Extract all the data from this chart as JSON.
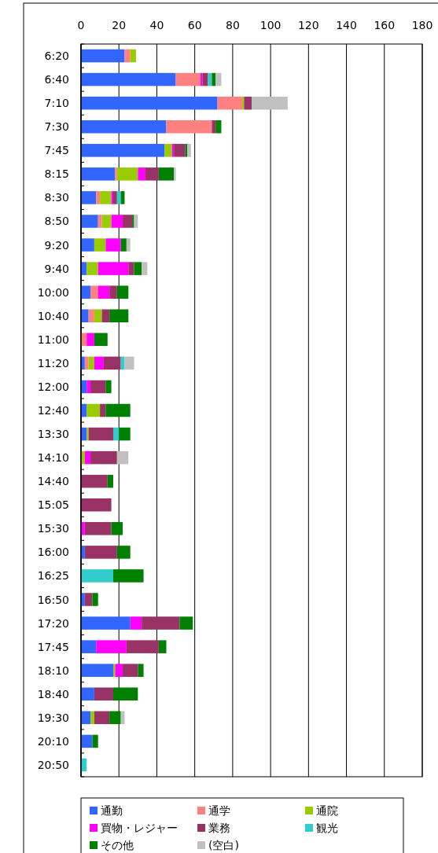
{
  "chart_data": {
    "type": "bar",
    "orientation": "horizontal",
    "stacked": true,
    "categories": [
      "6:20",
      "6:40",
      "7:10",
      "7:30",
      "7:45",
      "8:15",
      "8:30",
      "8:50",
      "9:20",
      "9:40",
      "10:00",
      "10:40",
      "11:00",
      "11:20",
      "12:00",
      "12:40",
      "13:30",
      "14:10",
      "14:40",
      "15:05",
      "15:30",
      "16:00",
      "16:25",
      "16:50",
      "17:20",
      "17:45",
      "18:10",
      "18:40",
      "19:30",
      "20:10",
      "20:50"
    ],
    "series": [
      {
        "name": "通勤",
        "color": "#3366ff",
        "values": [
          23,
          50,
          72,
          45,
          44,
          18,
          8,
          9,
          7,
          3,
          5,
          4,
          0,
          2,
          3,
          3,
          3,
          0,
          0,
          0,
          0,
          2,
          0,
          2,
          26,
          8,
          17,
          7,
          5,
          6,
          0
        ]
      },
      {
        "name": "通学",
        "color": "#ff8080",
        "values": [
          3,
          13,
          13,
          24,
          0,
          1,
          2,
          2,
          0,
          0,
          4,
          3,
          3,
          2,
          0,
          0,
          0,
          0,
          0,
          0,
          0,
          0,
          0,
          0,
          0,
          0,
          0,
          0,
          0,
          0,
          0
        ]
      },
      {
        "name": "通院",
        "color": "#99cc00",
        "values": [
          3,
          0,
          1,
          0,
          4,
          11,
          6,
          5,
          6,
          6,
          0,
          4,
          0,
          3,
          0,
          7,
          1,
          2,
          0,
          0,
          0,
          0,
          0,
          0,
          0,
          0,
          1,
          0,
          2,
          0,
          0
        ]
      },
      {
        "name": "買物・レジャー",
        "color": "#ff00ff",
        "values": [
          0,
          1,
          0,
          0,
          1,
          4,
          1,
          6,
          8,
          16,
          6,
          0,
          4,
          5,
          2,
          0,
          0,
          3,
          0,
          0,
          2,
          0,
          0,
          0,
          6,
          16,
          4,
          0,
          0,
          0,
          0
        ]
      },
      {
        "name": "業務",
        "color": "#993366",
        "values": [
          0,
          3,
          4,
          2,
          6,
          7,
          2,
          5,
          0,
          3,
          4,
          4,
          0,
          9,
          8,
          3,
          13,
          14,
          14,
          16,
          14,
          17,
          0,
          4,
          20,
          17,
          8,
          10,
          8,
          0,
          0
        ]
      },
      {
        "name": "観光",
        "color": "#33cccc",
        "values": [
          0,
          2,
          0,
          0,
          0,
          0,
          2,
          0,
          0,
          0,
          0,
          0,
          0,
          2,
          0,
          0,
          3,
          0,
          0,
          0,
          0,
          0,
          17,
          0,
          0,
          0,
          0,
          0,
          0,
          0,
          3
        ]
      },
      {
        "name": "その他",
        "color": "#008000",
        "values": [
          0,
          2,
          0,
          3,
          1,
          8,
          2,
          1,
          3,
          4,
          6,
          10,
          7,
          0,
          3,
          13,
          6,
          0,
          3,
          0,
          6,
          7,
          16,
          3,
          7,
          4,
          3,
          13,
          6,
          3,
          0
        ]
      },
      {
        "name": "(空白)",
        "color": "#c0c0c0",
        "values": [
          0,
          3,
          19,
          0,
          2,
          1,
          0,
          2,
          2,
          3,
          0,
          0,
          0,
          5,
          0,
          0,
          0,
          6,
          0,
          0,
          0,
          0,
          0,
          0,
          0,
          0,
          0,
          0,
          2,
          0,
          0
        ]
      }
    ],
    "xlim": [
      0,
      180
    ],
    "xticks": [
      0,
      20,
      40,
      60,
      80,
      100,
      120,
      140,
      160,
      180
    ],
    "grid": "x",
    "legend": "bottom"
  }
}
